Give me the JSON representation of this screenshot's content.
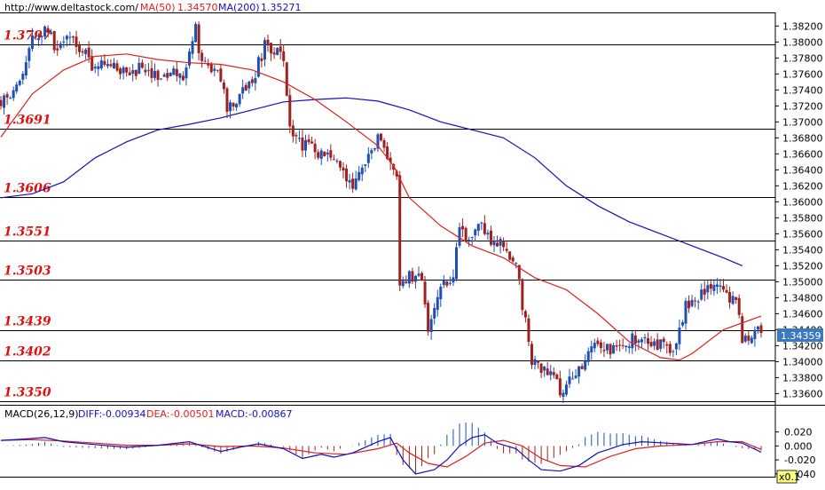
{
  "header": {
    "site": "http://www.deltastock.com/",
    "ma50_label": "MA(50)",
    "ma50_value": "1.34570",
    "ma200_label": "MA(200)",
    "ma200_value": "1.35271"
  },
  "macd_header": {
    "name": "MACD(26,12,9)",
    "diff_label": "DIFF:",
    "diff_value": "-0.00934",
    "dea_label": "DEA:",
    "dea_value": "-0.00501",
    "macd_label": "MACD:",
    "macd_value": "-0.00867"
  },
  "price_tag": "1.34359",
  "zoom_label": "x0.1",
  "colors": {
    "up_candle": "#1f4fb4",
    "down_candle": "#a02020",
    "ma50": "#e02020",
    "ma200": "#1010c0",
    "level_text": "#e01010",
    "price_tag_bg": "#3a78c0"
  },
  "chart_data": [
    {
      "type": "candlestick",
      "panel": "price",
      "ylim": [
        1.3346,
        1.3837
      ],
      "y_ticks": [
        "1.38200",
        "1.38000",
        "1.37800",
        "1.37600",
        "1.37400",
        "1.37200",
        "1.37000",
        "1.36800",
        "1.36600",
        "1.36400",
        "1.36200",
        "1.36000",
        "1.35800",
        "1.35600",
        "1.35400",
        "1.35200",
        "1.35000",
        "1.34800",
        "1.34600",
        "1.34400",
        "1.34200",
        "1.34000",
        "1.33800",
        "1.33600"
      ],
      "levels": [
        "1.3797",
        "1.3691",
        "1.3606",
        "1.3551",
        "1.3503",
        "1.3439",
        "1.3402",
        "1.3350"
      ],
      "last_price": 1.34359,
      "close_path": [
        [
          0,
          1.3725
        ],
        [
          5,
          1.374
        ],
        [
          10,
          1.38
        ],
        [
          14,
          1.382
        ],
        [
          18,
          1.379
        ],
        [
          22,
          1.381
        ],
        [
          26,
          1.379
        ],
        [
          30,
          1.3765
        ],
        [
          34,
          1.378
        ],
        [
          38,
          1.376
        ],
        [
          42,
          1.3765
        ],
        [
          46,
          1.377
        ],
        [
          50,
          1.3755
        ],
        [
          54,
          1.3765
        ],
        [
          58,
          1.376
        ],
        [
          62,
          1.3815
        ],
        [
          64,
          1.3775
        ],
        [
          68,
          1.377
        ],
        [
          72,
          1.372
        ],
        [
          76,
          1.373
        ],
        [
          80,
          1.375
        ],
        [
          84,
          1.3795
        ],
        [
          88,
          1.379
        ],
        [
          90,
          1.377
        ],
        [
          92,
          1.369
        ],
        [
          96,
          1.367
        ],
        [
          100,
          1.3665
        ],
        [
          104,
          1.3655
        ],
        [
          108,
          1.364
        ],
        [
          112,
          1.362
        ],
        [
          116,
          1.365
        ],
        [
          120,
          1.368
        ],
        [
          122,
          1.3665
        ],
        [
          126,
          1.3625
        ],
        [
          127,
          1.35
        ],
        [
          130,
          1.3505
        ],
        [
          134,
          1.35
        ],
        [
          136,
          1.344
        ],
        [
          140,
          1.349
        ],
        [
          144,
          1.351
        ],
        [
          146,
          1.356
        ],
        [
          150,
          1.3555
        ],
        [
          153,
          1.357
        ],
        [
          156,
          1.3555
        ],
        [
          160,
          1.355
        ],
        [
          164,
          1.352
        ],
        [
          167,
          1.345
        ],
        [
          169,
          1.34
        ],
        [
          174,
          1.339
        ],
        [
          178,
          1.3365
        ],
        [
          182,
          1.338
        ],
        [
          186,
          1.34
        ],
        [
          190,
          1.3425
        ],
        [
          194,
          1.341
        ],
        [
          197,
          1.3415
        ],
        [
          200,
          1.3425
        ],
        [
          204,
          1.3435
        ],
        [
          206,
          1.342
        ],
        [
          210,
          1.342
        ],
        [
          213,
          1.341
        ],
        [
          216,
          1.344
        ],
        [
          218,
          1.347
        ],
        [
          221,
          1.348
        ],
        [
          224,
          1.3485
        ],
        [
          227,
          1.35
        ],
        [
          230,
          1.3495
        ],
        [
          232,
          1.347
        ],
        [
          234,
          1.348
        ],
        [
          236,
          1.343
        ],
        [
          240,
          1.344
        ],
        [
          242,
          1.3435
        ]
      ],
      "ma50": [
        [
          0,
          1.3681
        ],
        [
          10,
          1.3735
        ],
        [
          20,
          1.3765
        ],
        [
          30,
          1.3782
        ],
        [
          40,
          1.3785
        ],
        [
          50,
          1.3778
        ],
        [
          60,
          1.3774
        ],
        [
          70,
          1.3772
        ],
        [
          80,
          1.3765
        ],
        [
          90,
          1.375
        ],
        [
          100,
          1.3728
        ],
        [
          110,
          1.37
        ],
        [
          120,
          1.367
        ],
        [
          125,
          1.3645
        ],
        [
          130,
          1.3605
        ],
        [
          140,
          1.357
        ],
        [
          150,
          1.3545
        ],
        [
          160,
          1.353
        ],
        [
          170,
          1.3505
        ],
        [
          180,
          1.349
        ],
        [
          190,
          1.346
        ],
        [
          200,
          1.3425
        ],
        [
          210,
          1.3405
        ],
        [
          216,
          1.3402
        ],
        [
          220,
          1.341
        ],
        [
          230,
          1.344
        ],
        [
          242,
          1.3457
        ]
      ],
      "ma200": [
        [
          0,
          1.3605
        ],
        [
          10,
          1.361
        ],
        [
          20,
          1.3625
        ],
        [
          30,
          1.3655
        ],
        [
          40,
          1.3675
        ],
        [
          50,
          1.369
        ],
        [
          60,
          1.3697
        ],
        [
          70,
          1.3705
        ],
        [
          80,
          1.3715
        ],
        [
          90,
          1.3725
        ],
        [
          100,
          1.3728
        ],
        [
          110,
          1.373
        ],
        [
          120,
          1.3726
        ],
        [
          130,
          1.3715
        ],
        [
          140,
          1.37
        ],
        [
          150,
          1.369
        ],
        [
          160,
          1.368
        ],
        [
          170,
          1.3655
        ],
        [
          180,
          1.362
        ],
        [
          190,
          1.3595
        ],
        [
          200,
          1.3575
        ],
        [
          210,
          1.356
        ],
        [
          220,
          1.3545
        ],
        [
          230,
          1.353
        ],
        [
          236,
          1.352
        ]
      ]
    },
    {
      "type": "macd",
      "panel": "indicator",
      "ylim": [
        -0.044,
        0.036
      ],
      "y_ticks": [
        "0.020",
        "0.000",
        "-0.020",
        "-0.040"
      ],
      "diff": [
        [
          0,
          0.008
        ],
        [
          8,
          0.01
        ],
        [
          14,
          0.012
        ],
        [
          20,
          0.006
        ],
        [
          30,
          0.002
        ],
        [
          40,
          -0.002
        ],
        [
          50,
          0.001
        ],
        [
          60,
          0.006
        ],
        [
          62,
          0.003
        ],
        [
          70,
          -0.008
        ],
        [
          76,
          -0.002
        ],
        [
          82,
          0.003
        ],
        [
          90,
          -0.004
        ],
        [
          96,
          -0.018
        ],
        [
          102,
          -0.012
        ],
        [
          106,
          -0.016
        ],
        [
          112,
          -0.01
        ],
        [
          120,
          0.006
        ],
        [
          124,
          0.012
        ],
        [
          128,
          -0.02
        ],
        [
          132,
          -0.04
        ],
        [
          138,
          -0.034
        ],
        [
          142,
          -0.02
        ],
        [
          146,
          0.0
        ],
        [
          150,
          0.012
        ],
        [
          154,
          0.016
        ],
        [
          158,
          0.004
        ],
        [
          164,
          -0.004
        ],
        [
          168,
          -0.02
        ],
        [
          172,
          -0.034
        ],
        [
          178,
          -0.036
        ],
        [
          184,
          -0.028
        ],
        [
          190,
          -0.01
        ],
        [
          198,
          0.002
        ],
        [
          204,
          0.006
        ],
        [
          212,
          0.004
        ],
        [
          220,
          0.002
        ],
        [
          228,
          0.01
        ],
        [
          232,
          0.006
        ],
        [
          236,
          0.004
        ],
        [
          242,
          -0.009
        ]
      ],
      "dea": [
        [
          0,
          0.008
        ],
        [
          10,
          0.009
        ],
        [
          20,
          0.007
        ],
        [
          30,
          0.004
        ],
        [
          40,
          0.001
        ],
        [
          50,
          0.001
        ],
        [
          60,
          0.003
        ],
        [
          70,
          -0.001
        ],
        [
          80,
          0.0
        ],
        [
          90,
          -0.003
        ],
        [
          100,
          -0.01
        ],
        [
          110,
          -0.012
        ],
        [
          120,
          -0.004
        ],
        [
          126,
          0.004
        ],
        [
          130,
          -0.01
        ],
        [
          136,
          -0.025
        ],
        [
          142,
          -0.03
        ],
        [
          148,
          -0.015
        ],
        [
          154,
          0.004
        ],
        [
          160,
          0.008
        ],
        [
          166,
          0.0
        ],
        [
          172,
          -0.018
        ],
        [
          178,
          -0.028
        ],
        [
          186,
          -0.03
        ],
        [
          194,
          -0.015
        ],
        [
          202,
          -0.004
        ],
        [
          210,
          0.0
        ],
        [
          220,
          0.002
        ],
        [
          228,
          0.006
        ],
        [
          236,
          0.006
        ],
        [
          242,
          -0.005
        ]
      ]
    }
  ]
}
